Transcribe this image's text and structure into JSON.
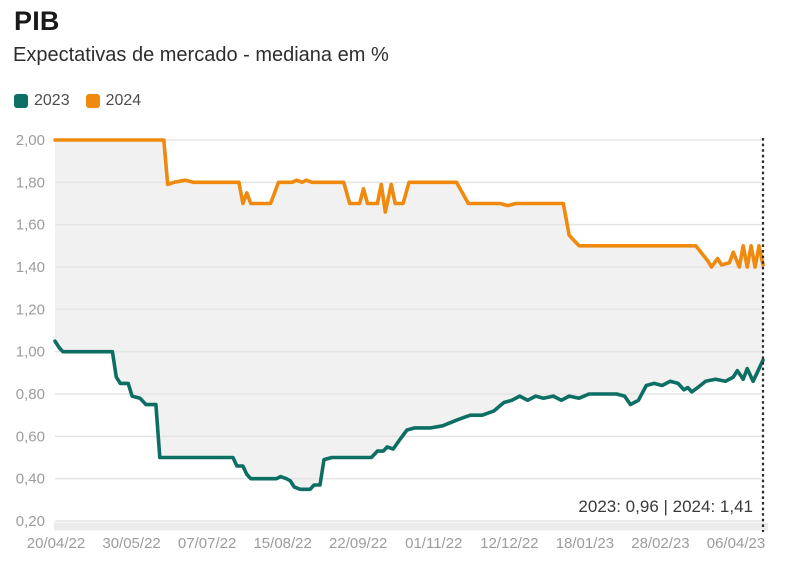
{
  "header": {
    "title": "PIB",
    "subtitle": "Expectativas de mercado - mediana em %"
  },
  "legend": [
    {
      "label": "2023",
      "color": "#0d6e64"
    },
    {
      "label": "2024",
      "color": "#ef8a0e"
    }
  ],
  "annotation": {
    "text": "2023: 0,96  |  2024: 1,41"
  },
  "colors": {
    "series_2023": "#0d6e64",
    "series_2024": "#ef8a0e",
    "between_area_fill": "#f1f1f1",
    "gridline": "#e5e5e5",
    "axis_label": "#9c9c9c",
    "minor_tick": "#d9d9d9",
    "end_marker_line": "#2a2a2a",
    "annotation_text": "#3a3a3a"
  },
  "chart_data": {
    "type": "line",
    "title": "PIB",
    "subtitle": "Expectativas de mercado - mediana em %",
    "unit": "%",
    "grid": "horizontal-only",
    "legend_position": "top-left",
    "ylim": [
      0.2,
      2.0
    ],
    "y_ticks": [
      {
        "v": 2.0,
        "label": "2,00"
      },
      {
        "v": 1.8,
        "label": "1,80"
      },
      {
        "v": 1.6,
        "label": "1,60"
      },
      {
        "v": 1.4,
        "label": "1,40"
      },
      {
        "v": 1.2,
        "label": "1,20"
      },
      {
        "v": 1.0,
        "label": "1,00"
      },
      {
        "v": 0.8,
        "label": "0,80"
      },
      {
        "v": 0.6,
        "label": "0,60"
      },
      {
        "v": 0.4,
        "label": "0,40"
      },
      {
        "v": 0.2,
        "label": "0,20"
      }
    ],
    "x_tick_labels": [
      "20/04/22",
      "30/05/22",
      "07/07/22",
      "15/08/22",
      "22/09/22",
      "01/11/22",
      "12/12/22",
      "18/01/23",
      "28/02/23",
      "06/04/23"
    ],
    "x_unit": "dias desde 20/04/22",
    "x_range_days": [
      0,
      358
    ],
    "area_between_series": true,
    "end_marker": "dotted-vertical-line-at-last-observation",
    "latest_values": {
      "2023": "0,96",
      "2024": "1,41"
    },
    "series": [
      {
        "name": "2023",
        "color": "#0d6e64",
        "points": [
          [
            0,
            1.05
          ],
          [
            2,
            1.02
          ],
          [
            4,
            1.0
          ],
          [
            29,
            1.0
          ],
          [
            31,
            0.88
          ],
          [
            33,
            0.85
          ],
          [
            37,
            0.85
          ],
          [
            39,
            0.79
          ],
          [
            43,
            0.78
          ],
          [
            46,
            0.75
          ],
          [
            51,
            0.75
          ],
          [
            53,
            0.5
          ],
          [
            90,
            0.5
          ],
          [
            92,
            0.46
          ],
          [
            95,
            0.46
          ],
          [
            97,
            0.42
          ],
          [
            99,
            0.4
          ],
          [
            112,
            0.4
          ],
          [
            114,
            0.41
          ],
          [
            117,
            0.4
          ],
          [
            119,
            0.39
          ],
          [
            121,
            0.36
          ],
          [
            124,
            0.35
          ],
          [
            129,
            0.35
          ],
          [
            131,
            0.37
          ],
          [
            134,
            0.37
          ],
          [
            136,
            0.49
          ],
          [
            140,
            0.5
          ],
          [
            160,
            0.5
          ],
          [
            163,
            0.53
          ],
          [
            166,
            0.53
          ],
          [
            168,
            0.55
          ],
          [
            171,
            0.54
          ],
          [
            174,
            0.58
          ],
          [
            178,
            0.63
          ],
          [
            182,
            0.64
          ],
          [
            190,
            0.64
          ],
          [
            196,
            0.65
          ],
          [
            204,
            0.68
          ],
          [
            210,
            0.7
          ],
          [
            216,
            0.7
          ],
          [
            222,
            0.72
          ],
          [
            227,
            0.76
          ],
          [
            231,
            0.77
          ],
          [
            235,
            0.79
          ],
          [
            239,
            0.77
          ],
          [
            243,
            0.79
          ],
          [
            247,
            0.78
          ],
          [
            252,
            0.79
          ],
          [
            256,
            0.77
          ],
          [
            260,
            0.79
          ],
          [
            265,
            0.78
          ],
          [
            270,
            0.8
          ],
          [
            284,
            0.8
          ],
          [
            288,
            0.79
          ],
          [
            291,
            0.75
          ],
          [
            295,
            0.77
          ],
          [
            299,
            0.84
          ],
          [
            303,
            0.85
          ],
          [
            307,
            0.84
          ],
          [
            311,
            0.86
          ],
          [
            315,
            0.85
          ],
          [
            318,
            0.82
          ],
          [
            320,
            0.83
          ],
          [
            322,
            0.81
          ],
          [
            325,
            0.83
          ],
          [
            329,
            0.86
          ],
          [
            334,
            0.87
          ],
          [
            339,
            0.86
          ],
          [
            343,
            0.88
          ],
          [
            345,
            0.91
          ],
          [
            348,
            0.87
          ],
          [
            350,
            0.92
          ],
          [
            353,
            0.86
          ],
          [
            355,
            0.9
          ],
          [
            358,
            0.96
          ]
        ]
      },
      {
        "name": "2024",
        "color": "#ef8a0e",
        "points": [
          [
            0,
            2.0
          ],
          [
            55,
            2.0
          ],
          [
            57,
            1.79
          ],
          [
            60,
            1.8
          ],
          [
            66,
            1.81
          ],
          [
            70,
            1.8
          ],
          [
            93,
            1.8
          ],
          [
            95,
            1.7
          ],
          [
            97,
            1.75
          ],
          [
            99,
            1.7
          ],
          [
            109,
            1.7
          ],
          [
            113,
            1.8
          ],
          [
            120,
            1.8
          ],
          [
            122,
            1.81
          ],
          [
            125,
            1.8
          ],
          [
            127,
            1.81
          ],
          [
            130,
            1.8
          ],
          [
            146,
            1.8
          ],
          [
            149,
            1.7
          ],
          [
            154,
            1.7
          ],
          [
            156,
            1.77
          ],
          [
            158,
            1.7
          ],
          [
            163,
            1.7
          ],
          [
            165,
            1.79
          ],
          [
            167,
            1.66
          ],
          [
            170,
            1.79
          ],
          [
            172,
            1.7
          ],
          [
            176,
            1.7
          ],
          [
            179,
            1.8
          ],
          [
            203,
            1.8
          ],
          [
            209,
            1.7
          ],
          [
            225,
            1.7
          ],
          [
            229,
            1.69
          ],
          [
            233,
            1.7
          ],
          [
            257,
            1.7
          ],
          [
            260,
            1.55
          ],
          [
            263,
            1.52
          ],
          [
            265,
            1.5
          ],
          [
            324,
            1.5
          ],
          [
            330,
            1.43
          ],
          [
            332,
            1.4
          ],
          [
            335,
            1.44
          ],
          [
            337,
            1.41
          ],
          [
            341,
            1.42
          ],
          [
            343,
            1.47
          ],
          [
            346,
            1.4
          ],
          [
            348,
            1.5
          ],
          [
            350,
            1.4
          ],
          [
            352,
            1.5
          ],
          [
            354,
            1.4
          ],
          [
            356,
            1.5
          ],
          [
            358,
            1.41
          ]
        ]
      }
    ]
  }
}
